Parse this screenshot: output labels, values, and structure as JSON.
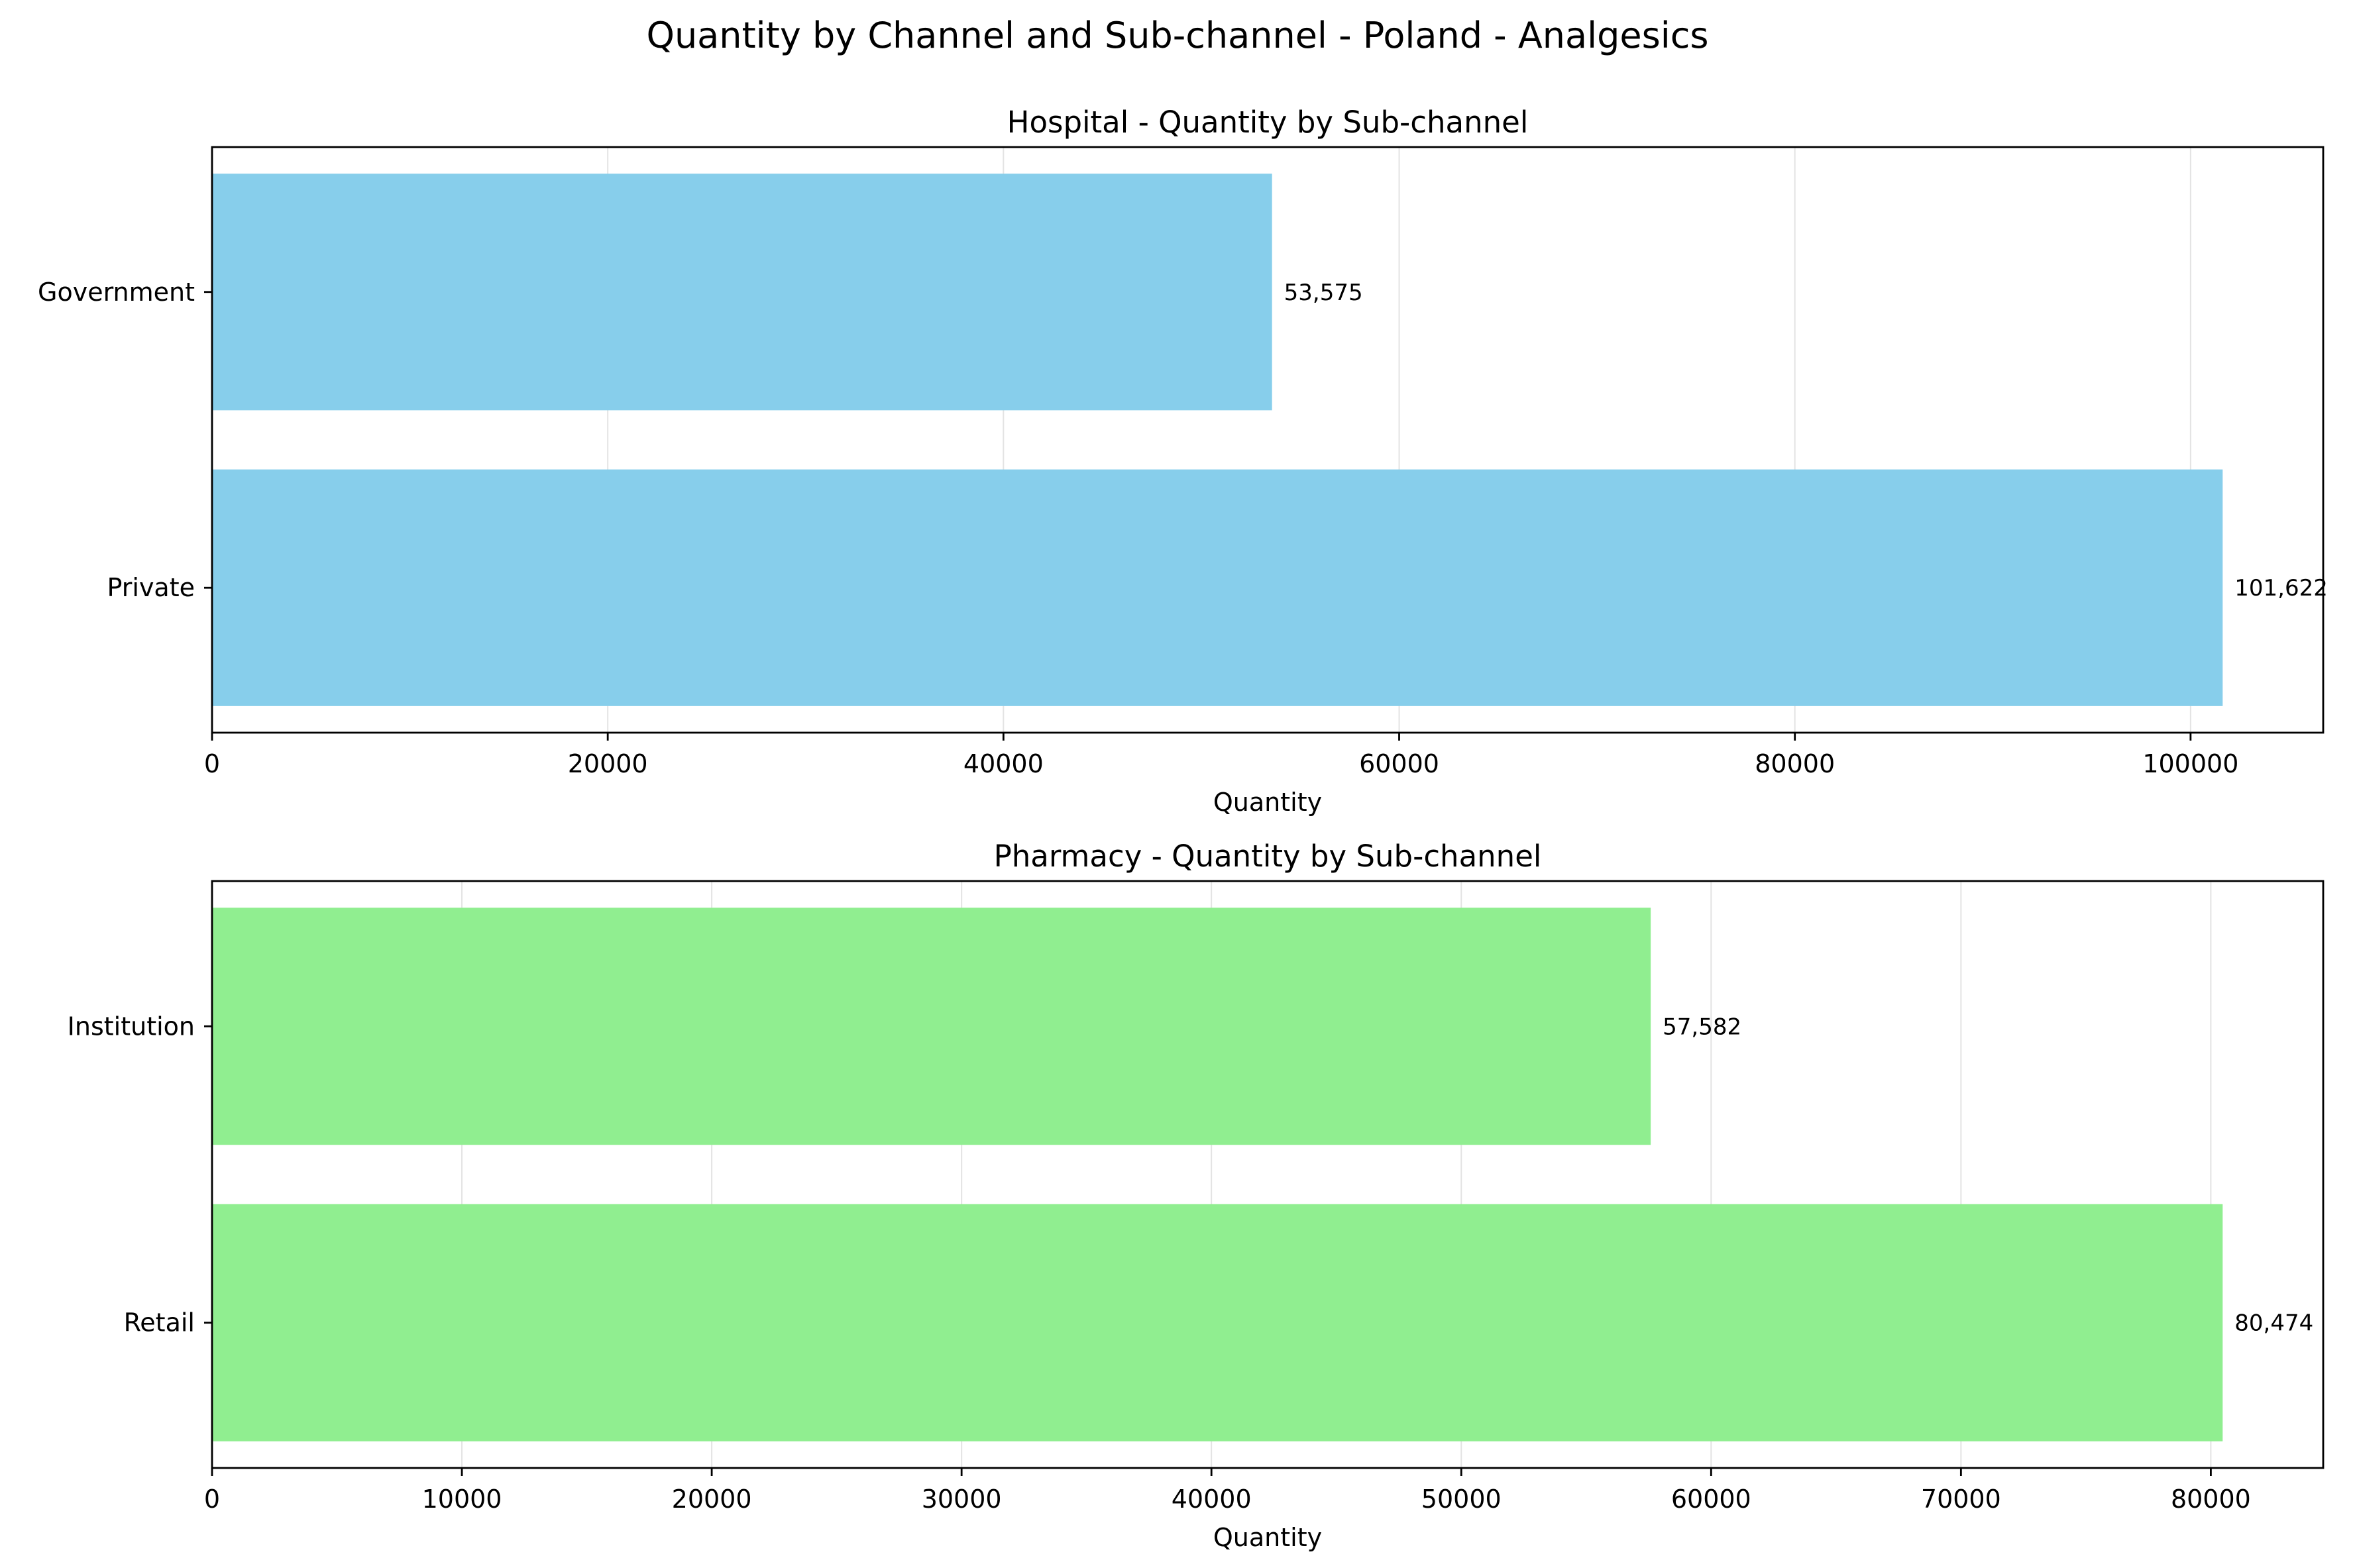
{
  "figure": {
    "suptitle": "Quantity by Channel and Sub-channel - Poland - Analgesics"
  },
  "chart_data": [
    {
      "type": "bar",
      "orientation": "horizontal",
      "title": "Hospital - Quantity by Sub-channel",
      "xlabel": "Quantity",
      "ylabel": "",
      "categories": [
        "Government",
        "Private"
      ],
      "values": [
        53575,
        101622
      ],
      "value_labels": [
        "53,575",
        "101,622"
      ],
      "xlim": [
        0,
        106703
      ],
      "xticks": [
        0,
        20000,
        40000,
        60000,
        80000,
        100000
      ],
      "xtick_labels": [
        "0",
        "20000",
        "40000",
        "60000",
        "80000",
        "100000"
      ],
      "grid": "x",
      "color": "#87CEEB"
    },
    {
      "type": "bar",
      "orientation": "horizontal",
      "title": "Pharmacy - Quantity by Sub-channel",
      "xlabel": "Quantity",
      "ylabel": "",
      "categories": [
        "Institution",
        "Retail"
      ],
      "values": [
        57582,
        80474
      ],
      "value_labels": [
        "57,582",
        "80,474"
      ],
      "xlim": [
        0,
        84498
      ],
      "xticks": [
        0,
        10000,
        20000,
        30000,
        40000,
        50000,
        60000,
        70000,
        80000
      ],
      "xtick_labels": [
        "0",
        "10000",
        "20000",
        "30000",
        "40000",
        "50000",
        "60000",
        "70000",
        "80000"
      ],
      "grid": "x",
      "color": "#90EE90"
    }
  ]
}
